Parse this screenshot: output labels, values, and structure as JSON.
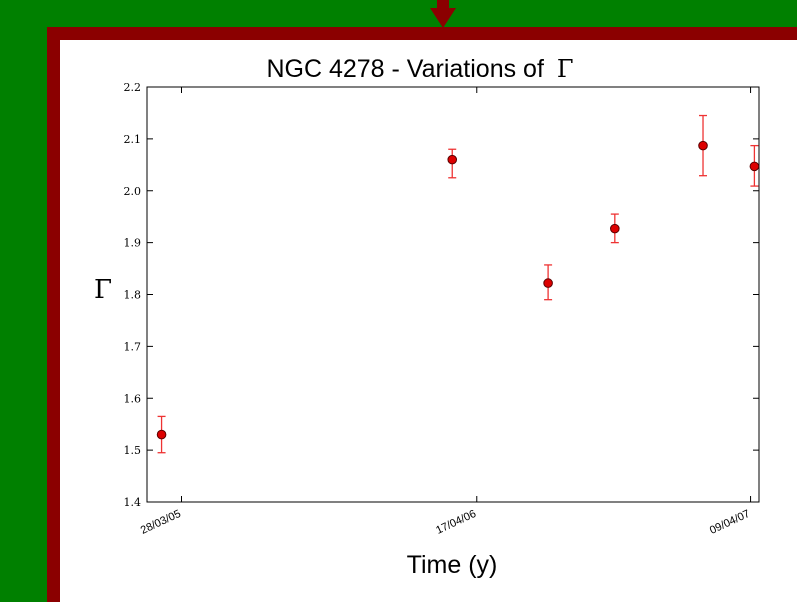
{
  "colors": {
    "background": "#008000",
    "frame": "#8b0000",
    "panel": "#ffffff",
    "marker_fill": "#dd0000",
    "marker_edge": "#5a0000",
    "errorbar": "#ee3333"
  },
  "chart_data": {
    "type": "scatter",
    "title": "NGC 4278 - Variations of",
    "title_symbol": "Γ",
    "xlabel": "Time (y)",
    "ylabel": "Γ",
    "xlim": [
      "2005-02-11",
      "2007-04-20"
    ],
    "ylim": [
      1.4,
      2.2
    ],
    "yticks": [
      1.4,
      1.5,
      1.6,
      1.7,
      1.8,
      1.9,
      2.0,
      2.1,
      2.2
    ],
    "ytick_labels": [
      "1.4",
      "1.5",
      "1.6",
      "1.7",
      "1.8",
      "1.9",
      "2.0",
      "2.1",
      "2.2"
    ],
    "xticks": [
      "2005-03-28",
      "2006-04-17",
      "2007-04-09"
    ],
    "xtick_labels": [
      "28/03/05",
      "17/04/06",
      "09/04/07"
    ],
    "grid": false,
    "legend": "none",
    "points": [
      {
        "x": "2005-03-02",
        "y": 1.53,
        "err_low": 0.035,
        "err_high": 0.035
      },
      {
        "x": "2006-03-16",
        "y": 2.06,
        "err_low": 0.035,
        "err_high": 0.02
      },
      {
        "x": "2006-07-19",
        "y": 1.822,
        "err_low": 0.032,
        "err_high": 0.035
      },
      {
        "x": "2006-10-14",
        "y": 1.927,
        "err_low": 0.027,
        "err_high": 0.028
      },
      {
        "x": "2007-02-06",
        "y": 2.087,
        "err_low": 0.058,
        "err_high": 0.058
      },
      {
        "x": "2007-04-14",
        "y": 2.047,
        "err_low": 0.038,
        "err_high": 0.04
      }
    ]
  }
}
